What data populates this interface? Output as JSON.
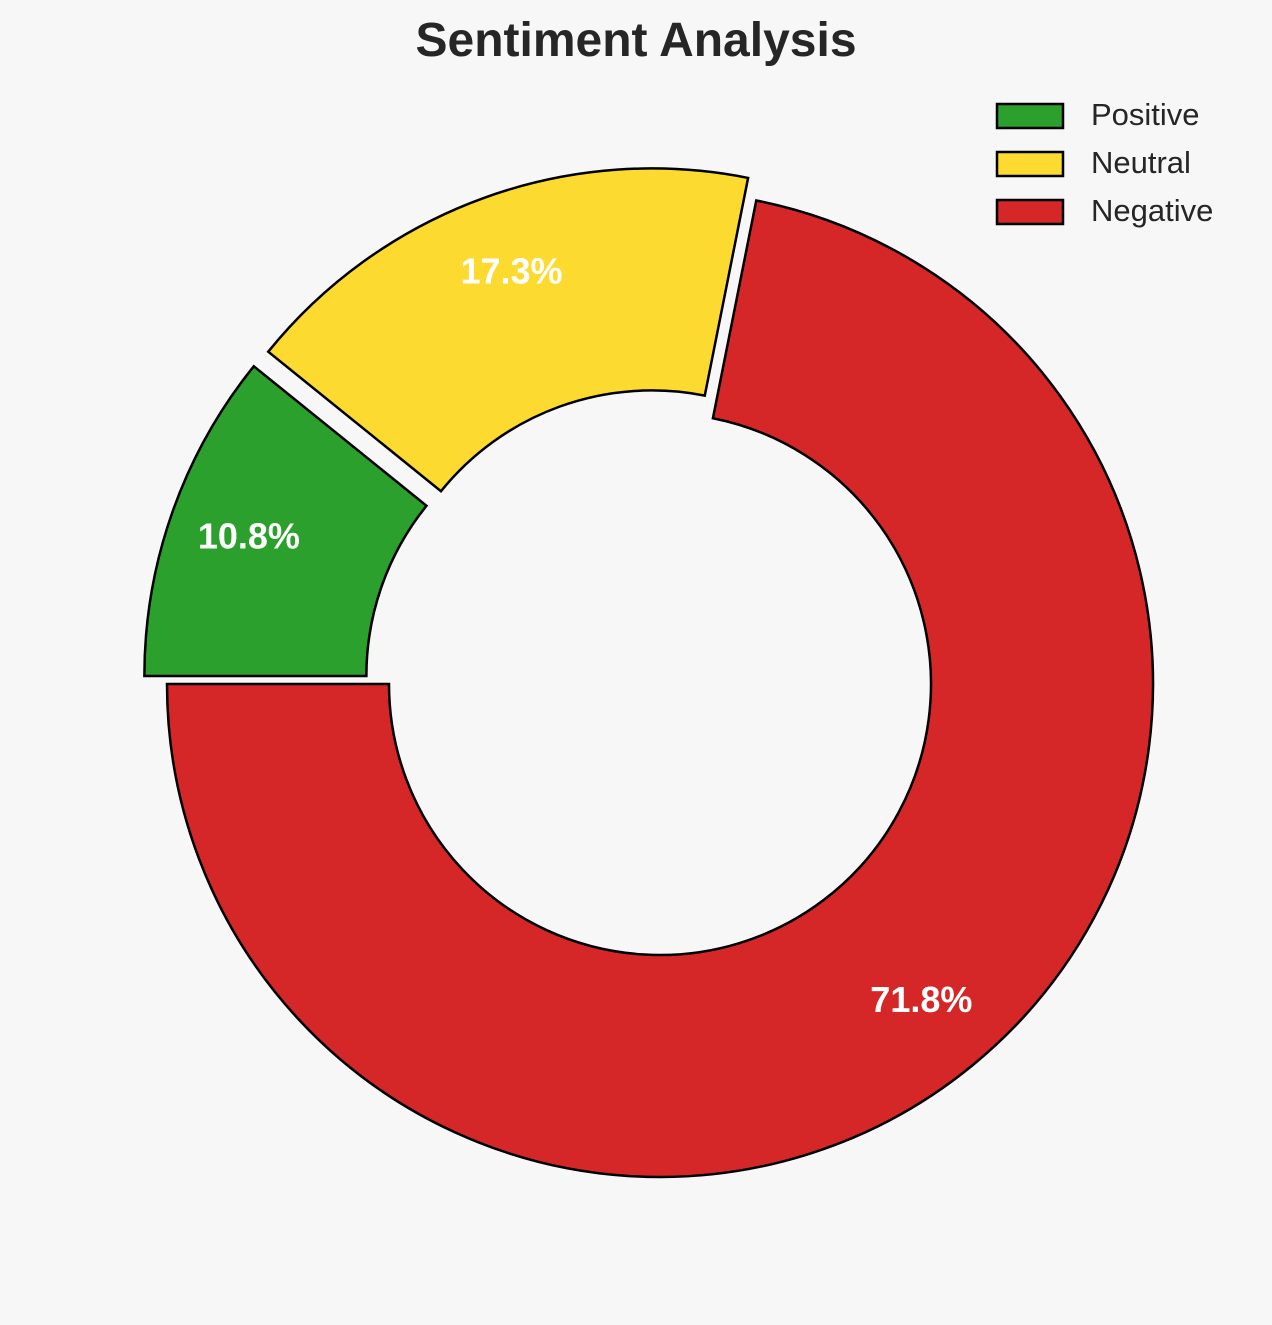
{
  "chart_data": {
    "type": "pie",
    "variant": "donut",
    "title": "Sentiment Analysis",
    "categories": [
      "Positive",
      "Neutral",
      "Negative"
    ],
    "values": [
      10.8,
      17.3,
      71.8
    ],
    "labels": [
      "10.8%",
      "17.3%",
      "71.8%"
    ],
    "colors": [
      "#2ca02c",
      "#fdda30",
      "#d62728"
    ],
    "exploded": [
      true,
      true,
      false
    ],
    "legend_position": "top-right",
    "edge_color": "#000000"
  }
}
